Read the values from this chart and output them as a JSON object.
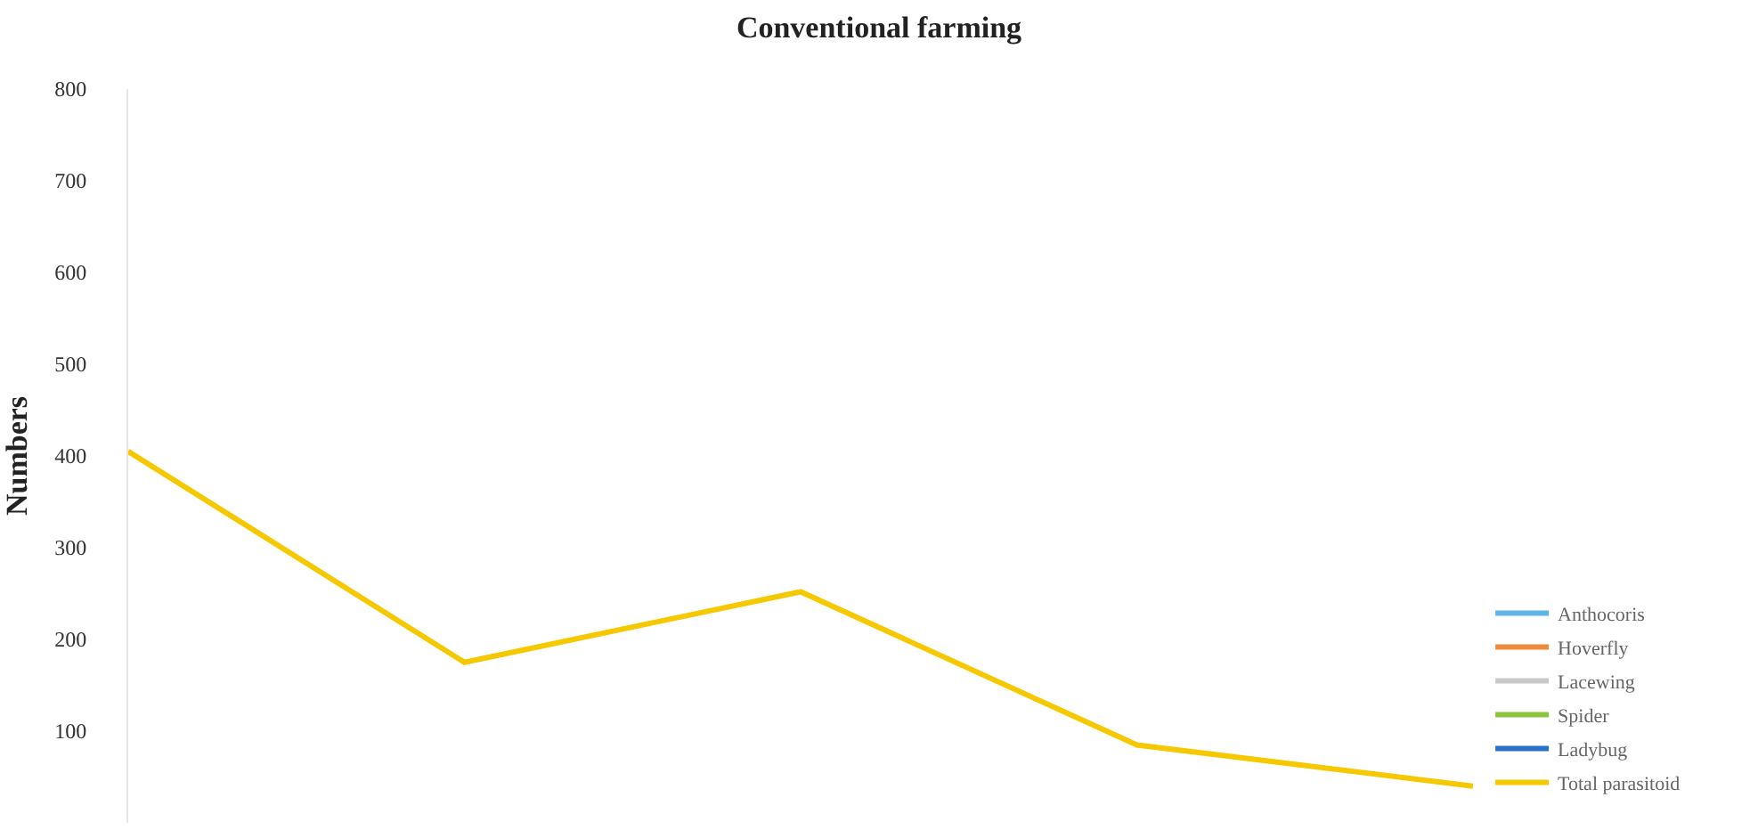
{
  "chart_data": {
    "type": "line",
    "title": "Conventional farming",
    "ylabel": "Numbers",
    "categories": [
      null,
      null,
      null,
      null,
      null
    ],
    "series": [
      {
        "name": "Anthocoris",
        "color": "#5fb4e6",
        "values": [
          null,
          null,
          null,
          null,
          null
        ]
      },
      {
        "name": "Hoverfly",
        "color": "#f08a3c",
        "values": [
          null,
          null,
          null,
          null,
          null
        ]
      },
      {
        "name": "Lacewing",
        "color": "#c8c8c8",
        "values": [
          null,
          null,
          null,
          null,
          null
        ]
      },
      {
        "name": "Spider",
        "color": "#8cc43c",
        "values": [
          null,
          null,
          null,
          null,
          null
        ]
      },
      {
        "name": "Ladybug",
        "color": "#2a72c8",
        "values": [
          null,
          null,
          null,
          null,
          null
        ]
      },
      {
        "name": "Total parasitoid",
        "color": "#f5c800",
        "values": [
          405,
          175,
          252,
          85,
          40
        ]
      }
    ],
    "ylim": [
      0,
      800
    ],
    "yticks": [
      100,
      200,
      300,
      400,
      500,
      600,
      700,
      800
    ],
    "legend": "right",
    "marker": "none",
    "line_style": "solid",
    "tick_labels": "y"
  }
}
